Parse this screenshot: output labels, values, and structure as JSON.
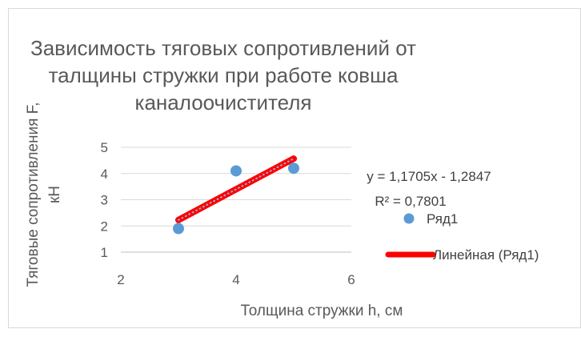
{
  "chart_data": {
    "type": "scatter",
    "title": "Зависимость тяговых сопротивлений от талщины стружки при работе ковша каналоочистителя",
    "title_lines": [
      "Зависимость тяговых сопротивлений от",
      "талщины стружки при работе ковша",
      "каналоочистителя"
    ],
    "xlabel": "Толщина стружки h, см",
    "ylabel": "Тяговые сопротивления F, кН",
    "ylabel_lines": [
      "Тяговые сопротивления F,",
      "кН"
    ],
    "xlim": [
      2,
      6
    ],
    "ylim": [
      1,
      5
    ],
    "x_ticks": [
      "2",
      "4",
      "6"
    ],
    "y_ticks": [
      "1",
      "2",
      "3",
      "4",
      "5"
    ],
    "grid": "horizontal",
    "series": [
      {
        "name": "Ряд1",
        "color": "#5b9bd5",
        "x": [
          3,
          4,
          5
        ],
        "y": [
          1.9,
          4.1,
          4.2
        ]
      }
    ],
    "trendline": {
      "name": "Линейная (Ряд1)",
      "color": "#ff0000",
      "slope": 1.1705,
      "intercept": -1.2847,
      "x_range": [
        3,
        5
      ],
      "equation": "y = 1,1705x - 1,2847",
      "r2": "R² = 0,7801"
    },
    "legend": {
      "position": "right"
    }
  }
}
